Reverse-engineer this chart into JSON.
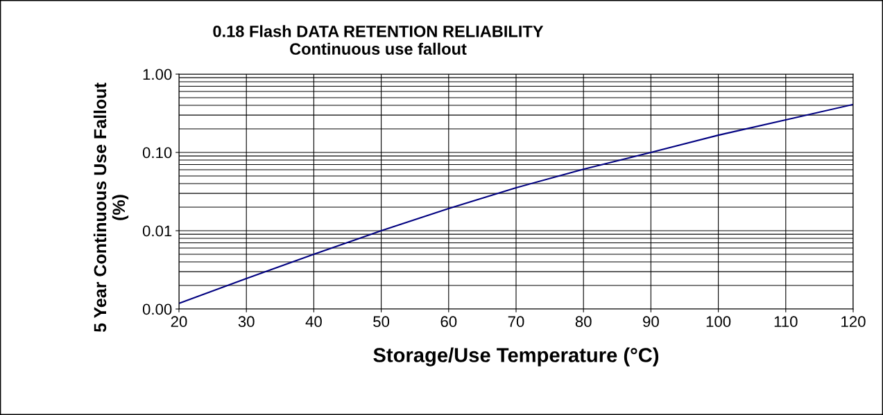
{
  "chart_data": {
    "type": "line",
    "title": "0.18 Flash DATA RETENTION RELIABILITY\nContinuous use fallout",
    "xlabel": "Storage/Use Temperature (°C)",
    "ylabel": "5 Year Continuous Use Fallout\n(%)",
    "x": [
      20,
      30,
      40,
      50,
      60,
      70,
      80,
      90,
      100,
      110,
      120
    ],
    "series": [
      {
        "color": "#000080",
        "values": [
          0.00118,
          0.00245,
          0.005,
          0.01,
          0.0192,
          0.0354,
          0.061,
          0.1,
          0.166,
          0.26,
          0.41
        ]
      }
    ],
    "log": "y",
    "xlim": [
      20,
      120
    ],
    "xticks": [
      20,
      30,
      40,
      50,
      60,
      70,
      80,
      90,
      100,
      110,
      120
    ],
    "ylim": [
      0.001,
      1
    ],
    "yticks": [
      {
        "value": 0.001,
        "label": "0.00"
      },
      {
        "value": 0.01,
        "label": "0.01"
      },
      {
        "value": 0.1,
        "label": "0.10"
      },
      {
        "value": 1,
        "label": "1.00"
      }
    ],
    "grid": true,
    "marker": "none",
    "line_style": "solid"
  }
}
